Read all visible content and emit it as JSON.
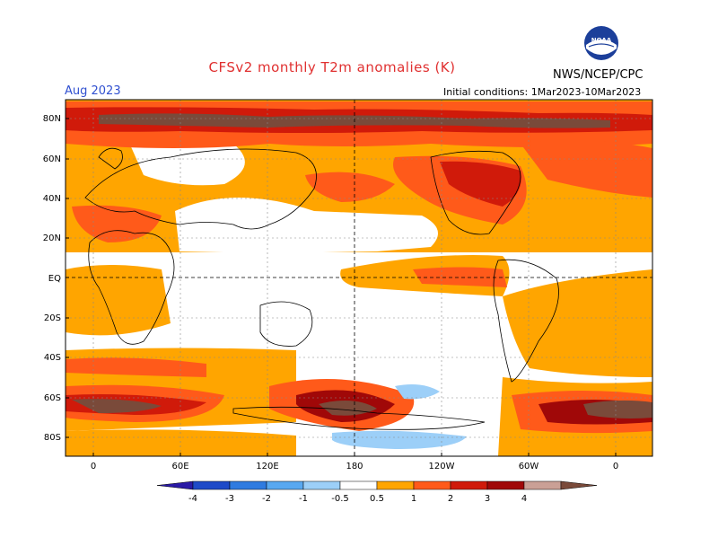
{
  "header": {
    "title": "CFSv2 monthly T2m anomalies (K)",
    "month": "Aug 2023",
    "initial_conditions": "Initial conditions: 1Mar2023-10Mar2023",
    "agency": "NWS/NCEP/CPC",
    "logo_text": "NOAA"
  },
  "map": {
    "lat_labels": [
      "80N",
      "60N",
      "40N",
      "20N",
      "EQ",
      "20S",
      "40S",
      "60S",
      "80S"
    ],
    "lon_labels": [
      "0",
      "60E",
      "120E",
      "180",
      "120W",
      "60W",
      "0"
    ]
  },
  "colorbar": {
    "labels": [
      "-4",
      "-3",
      "-2",
      "-1",
      "-0.5",
      "0.5",
      "1",
      "2",
      "3",
      "4"
    ],
    "colors": [
      "#2a1aa6",
      "#1e4ac8",
      "#2f7be0",
      "#58a8f0",
      "#9ccff8",
      "#ffffff",
      "#ffa500",
      "#ff5a1a",
      "#d01a0a",
      "#a00808",
      "#caa096",
      "#7a4a3a"
    ]
  }
}
